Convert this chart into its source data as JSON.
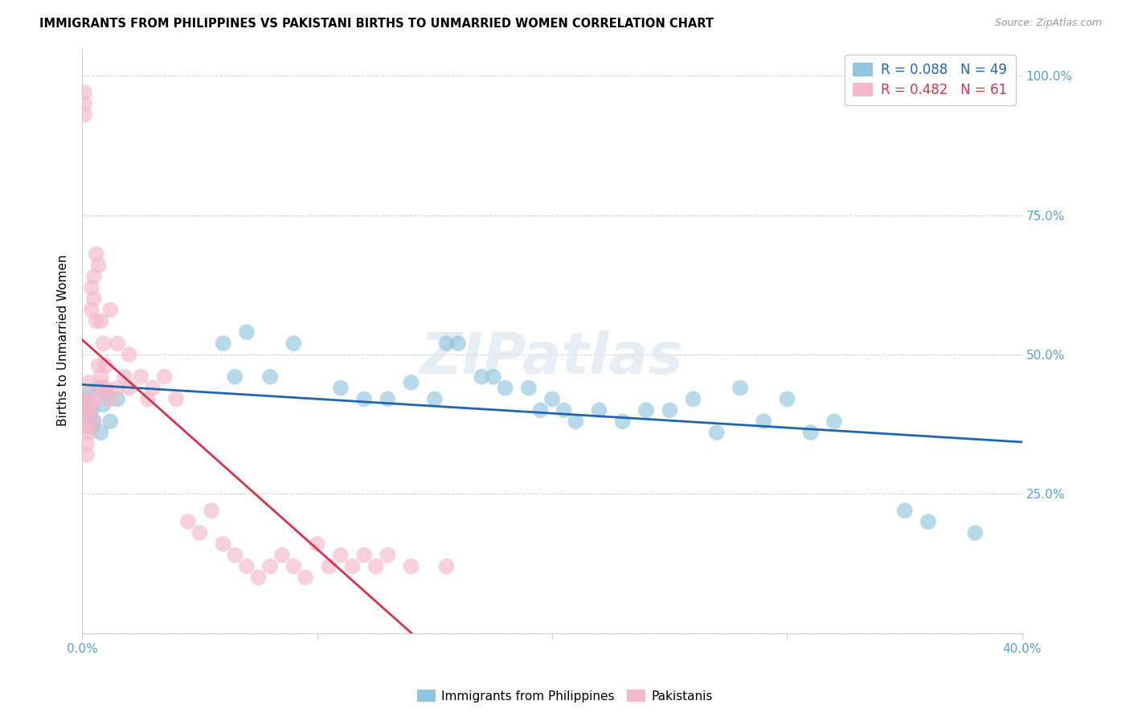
{
  "title": "IMMIGRANTS FROM PHILIPPINES VS PAKISTANI BIRTHS TO UNMARRIED WOMEN CORRELATION CHART",
  "source": "Source: ZipAtlas.com",
  "ylabel_left": "Births to Unmarried Women",
  "xlim": [
    0.0,
    0.4
  ],
  "ylim": [
    0.0,
    1.05
  ],
  "color_blue": "#92c5de",
  "color_pink": "#f4b8c8",
  "color_line_blue": "#2166ac",
  "color_line_pink": "#d6324b",
  "R_blue": 0.088,
  "N_blue": 49,
  "R_pink": 0.482,
  "N_pink": 61,
  "legend_labels": [
    "Immigrants from Philippines",
    "Pakistanis"
  ],
  "watermark": "ZIPatlas",
  "blue_x": [
    0.001,
    0.001,
    0.002,
    0.002,
    0.003,
    0.003,
    0.004,
    0.004,
    0.005,
    0.007,
    0.008,
    0.009,
    0.01,
    0.012,
    0.015,
    0.06,
    0.065,
    0.07,
    0.08,
    0.09,
    0.11,
    0.12,
    0.13,
    0.14,
    0.15,
    0.155,
    0.16,
    0.17,
    0.175,
    0.18,
    0.19,
    0.195,
    0.2,
    0.205,
    0.21,
    0.22,
    0.23,
    0.24,
    0.25,
    0.26,
    0.27,
    0.28,
    0.29,
    0.3,
    0.31,
    0.32,
    0.35,
    0.36,
    0.38
  ],
  "blue_y": [
    0.4,
    0.42,
    0.38,
    0.41,
    0.39,
    0.43,
    0.37,
    0.4,
    0.38,
    0.44,
    0.36,
    0.41,
    0.43,
    0.38,
    0.42,
    0.52,
    0.46,
    0.54,
    0.46,
    0.52,
    0.44,
    0.42,
    0.42,
    0.45,
    0.42,
    0.52,
    0.52,
    0.46,
    0.46,
    0.44,
    0.44,
    0.4,
    0.42,
    0.4,
    0.38,
    0.4,
    0.38,
    0.4,
    0.4,
    0.42,
    0.36,
    0.44,
    0.38,
    0.42,
    0.36,
    0.38,
    0.22,
    0.2,
    0.18
  ],
  "pink_x": [
    0.001,
    0.001,
    0.001,
    0.001,
    0.001,
    0.002,
    0.002,
    0.002,
    0.002,
    0.003,
    0.003,
    0.003,
    0.004,
    0.004,
    0.004,
    0.005,
    0.005,
    0.005,
    0.006,
    0.006,
    0.006,
    0.007,
    0.007,
    0.008,
    0.008,
    0.009,
    0.009,
    0.01,
    0.01,
    0.012,
    0.012,
    0.015,
    0.015,
    0.018,
    0.02,
    0.02,
    0.025,
    0.028,
    0.03,
    0.035,
    0.04,
    0.045,
    0.05,
    0.055,
    0.06,
    0.065,
    0.07,
    0.075,
    0.08,
    0.085,
    0.09,
    0.095,
    0.1,
    0.105,
    0.11,
    0.115,
    0.12,
    0.125,
    0.13,
    0.14,
    0.155
  ],
  "pink_y": [
    0.97,
    0.95,
    0.93,
    0.42,
    0.38,
    0.4,
    0.37,
    0.34,
    0.32,
    0.45,
    0.4,
    0.36,
    0.62,
    0.58,
    0.42,
    0.64,
    0.6,
    0.38,
    0.68,
    0.56,
    0.42,
    0.66,
    0.48,
    0.56,
    0.46,
    0.52,
    0.44,
    0.48,
    0.44,
    0.58,
    0.42,
    0.52,
    0.44,
    0.46,
    0.5,
    0.44,
    0.46,
    0.42,
    0.44,
    0.46,
    0.42,
    0.2,
    0.18,
    0.22,
    0.16,
    0.14,
    0.12,
    0.1,
    0.12,
    0.14,
    0.12,
    0.1,
    0.16,
    0.12,
    0.14,
    0.12,
    0.14,
    0.12,
    0.14,
    0.12,
    0.12
  ]
}
